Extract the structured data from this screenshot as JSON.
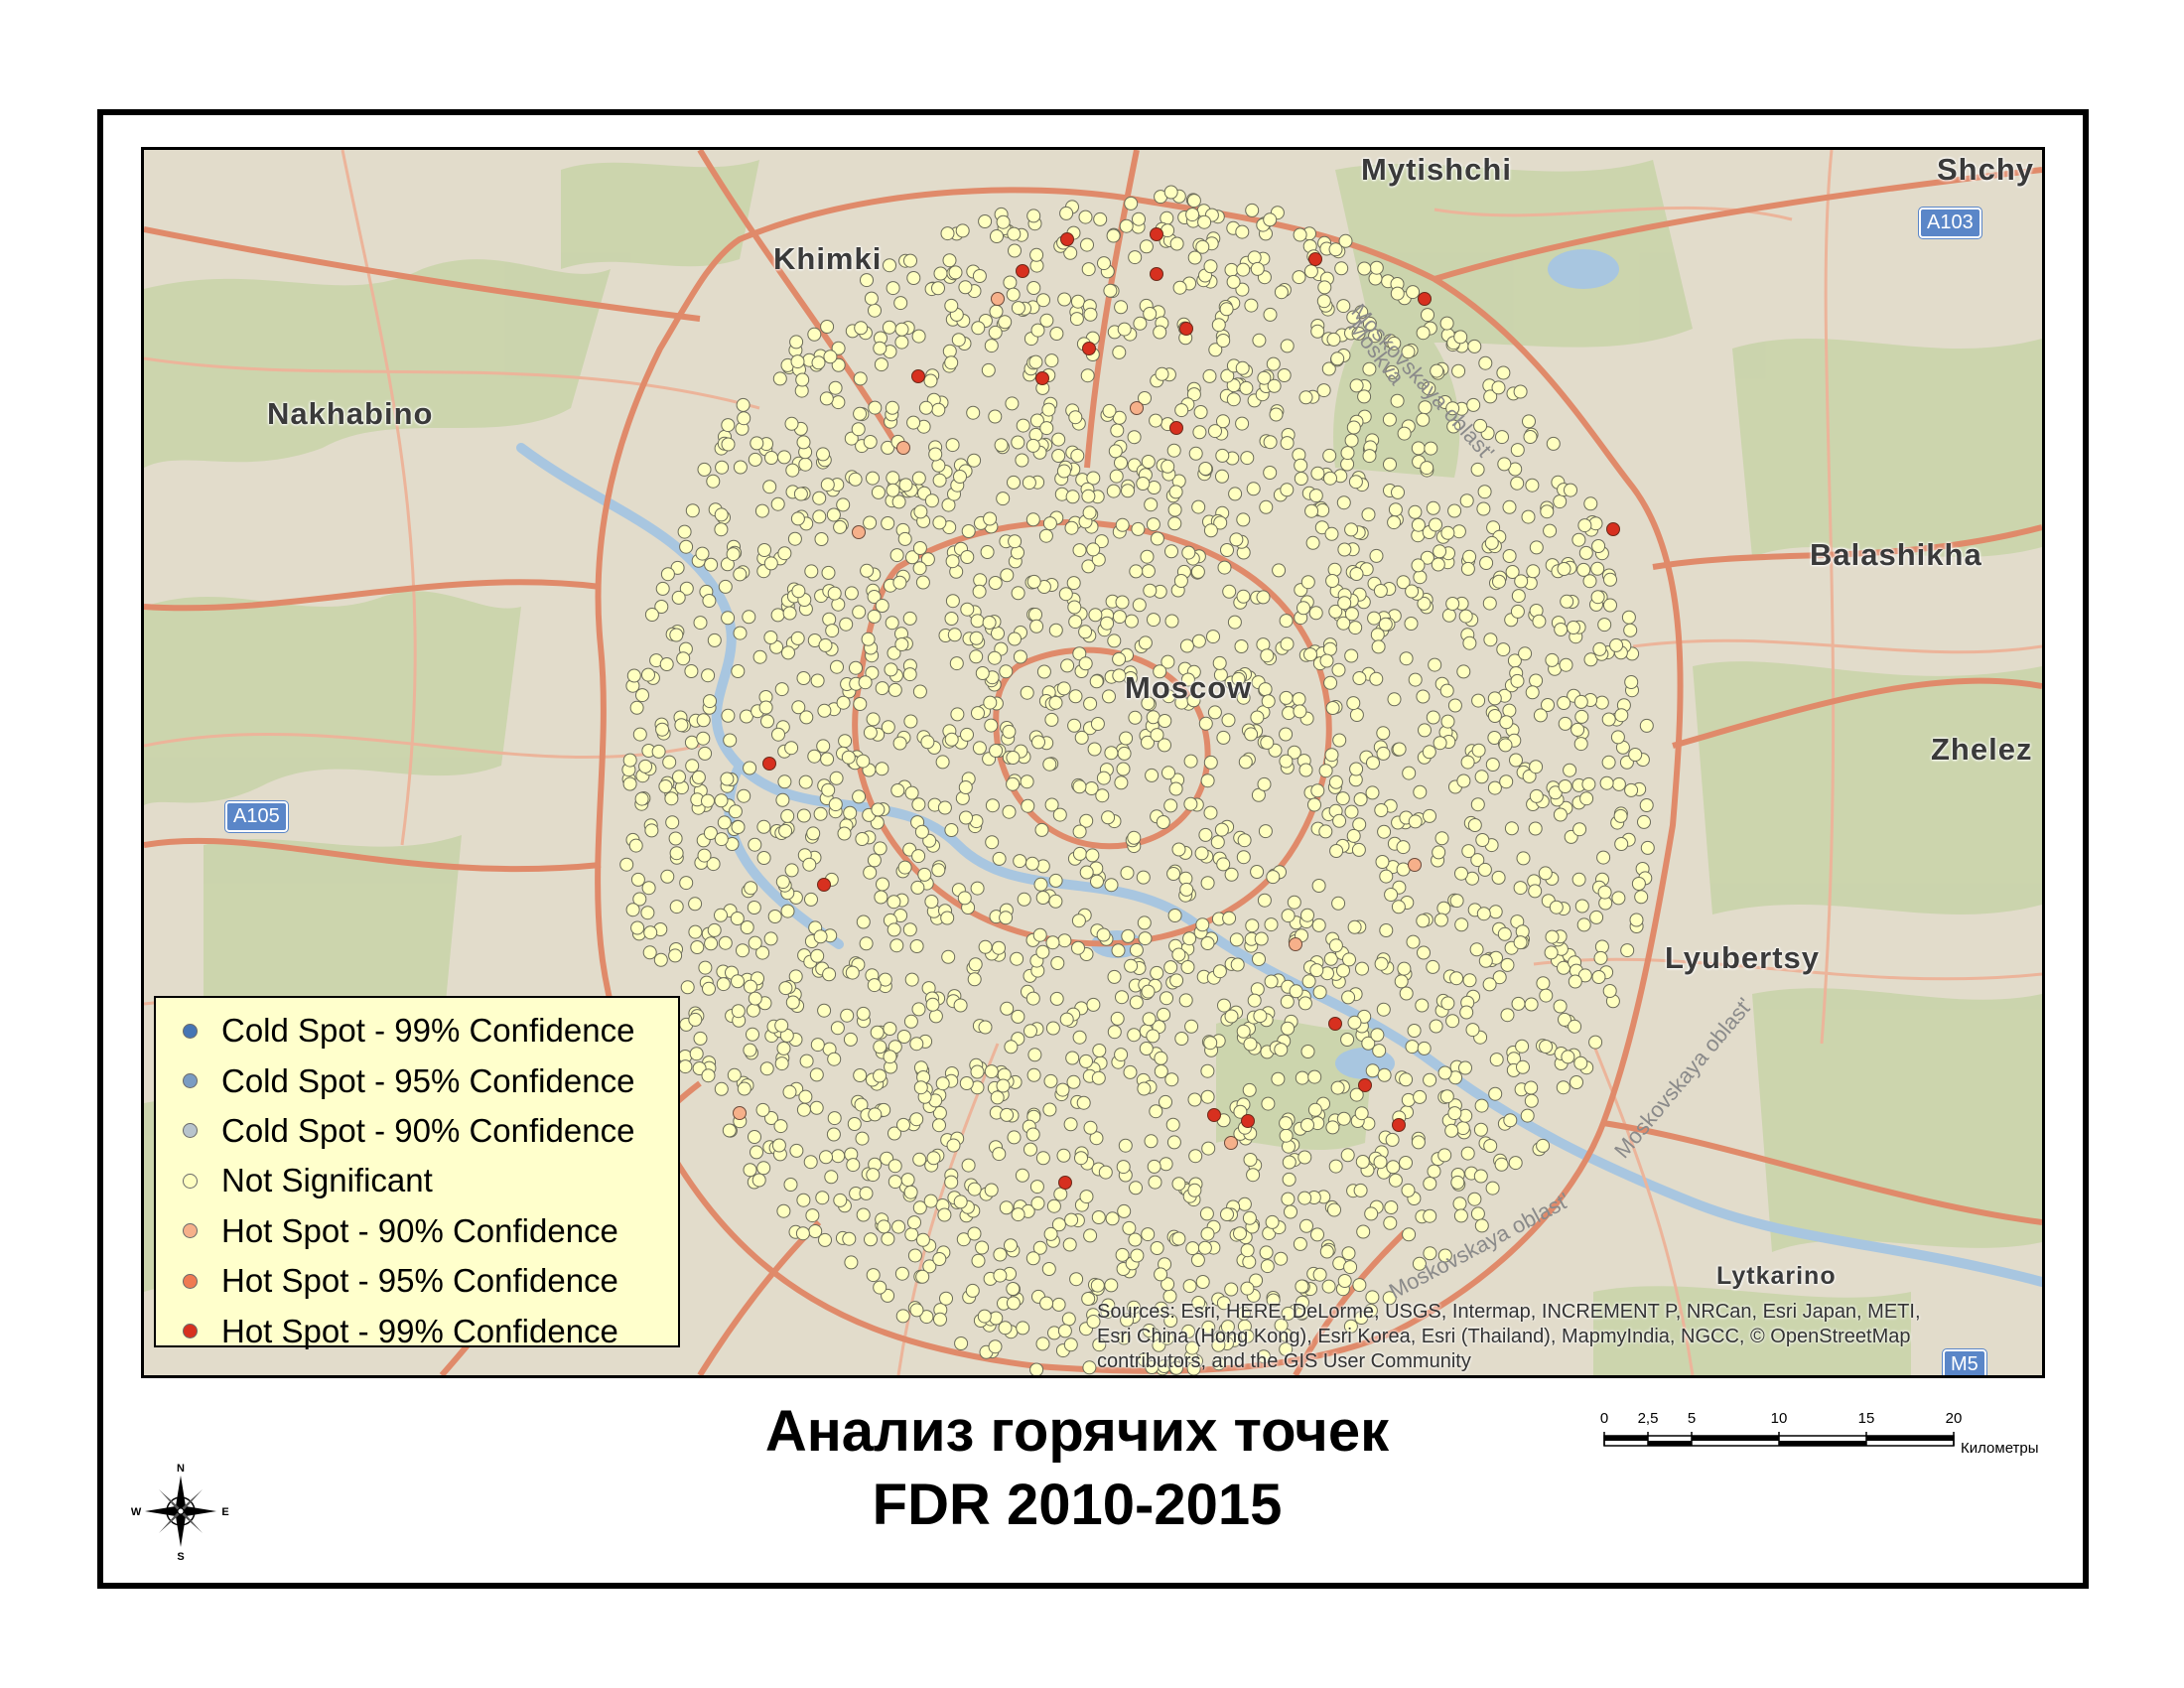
{
  "map": {
    "cities": [
      {
        "name": "Mytishchi",
        "pos": "top-center"
      },
      {
        "name": "Shchy",
        "pos": "top-right"
      },
      {
        "name": "Khimki",
        "pos": "top-left"
      },
      {
        "name": "Nakhabino",
        "pos": "left"
      },
      {
        "name": "Balashikha",
        "pos": "right"
      },
      {
        "name": "Moscow",
        "pos": "center"
      },
      {
        "name": "Zhelez",
        "pos": "right"
      },
      {
        "name": "Lyubertsy",
        "pos": "lower-right"
      },
      {
        "name": "Lytkarino",
        "pos": "bottom-right"
      }
    ],
    "shields": [
      "A103",
      "A105",
      "M5"
    ],
    "region_labels": [
      "Moskovskaya oblast'",
      "Moskva",
      "Moskovskaya oblast'",
      "Moskovskaya oblast'"
    ],
    "colors": {
      "background": "#e2dccb",
      "forest": "#c8d3a8",
      "water": "#a8c6e0",
      "major_road": "#e08a6a",
      "minor_road": "#ecb49a",
      "not_significant": "#ffffc0",
      "hot_99": "#d7301f"
    }
  },
  "legend": {
    "items": [
      {
        "label": "Cold Spot - 99% Confidence",
        "color": "#4575b4"
      },
      {
        "label": "Cold Spot - 95% Confidence",
        "color": "#7a9cc2"
      },
      {
        "label": "Cold Spot - 90% Confidence",
        "color": "#b8c4cc"
      },
      {
        "label": "Not Significant",
        "color": "#ffffc0"
      },
      {
        "label": "Hot Spot - 90% Confidence",
        "color": "#f6b08a"
      },
      {
        "label": "Hot Spot - 95% Confidence",
        "color": "#ef7a52"
      },
      {
        "label": "Hot Spot - 99% Confidence",
        "color": "#d7301f"
      }
    ]
  },
  "credits": {
    "line1": "Sources: Esri, HERE, DeLorme, USGS, Intermap, INCREMENT P, NRCan, Esri Japan, METI,",
    "line2": "Esri China (Hong Kong), Esri Korea, Esri (Thailand), MapmyIndia, NGCC, © OpenStreetMap",
    "line3": "contributors, and the GIS User Community"
  },
  "title": {
    "line1": "Анализ горячих точек",
    "line2": "FDR 2010-2015"
  },
  "scalebar": {
    "ticks": [
      "0",
      "2,5",
      "5",
      "10",
      "15",
      "20"
    ],
    "tick_values_km": [
      0,
      2.5,
      5,
      10,
      15,
      20
    ],
    "unit": "Километры"
  },
  "compass": {
    "n": "N",
    "s": "S",
    "e": "E",
    "w": "W"
  }
}
